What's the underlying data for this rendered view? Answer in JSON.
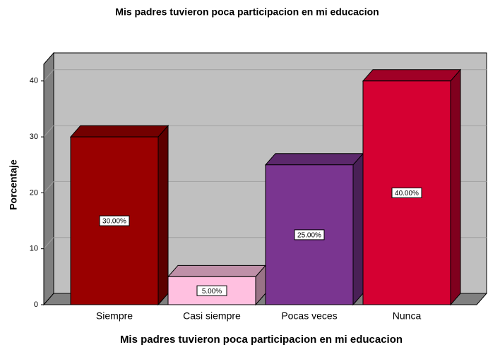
{
  "chart_data": {
    "type": "bar3d",
    "title": "Mis padres tuvieron poca participacion en mi educacion",
    "xlabel": "Mis padres tuvieron poca participacion en mi educacion",
    "ylabel": "Porcentaje",
    "categories": [
      "Siempre",
      "Casi siempre",
      "Pocas veces",
      "Nunca"
    ],
    "values": [
      30,
      5,
      25,
      40
    ],
    "value_labels": [
      "30.00%",
      "5.00%",
      "25.00%",
      "40.00%"
    ],
    "colors": [
      "#990000",
      "#ffc0e0",
      "#7a3590",
      "#d50032"
    ],
    "ylim": [
      0,
      43
    ],
    "yticks": [
      0,
      10,
      20,
      30,
      40
    ],
    "grid": true
  }
}
